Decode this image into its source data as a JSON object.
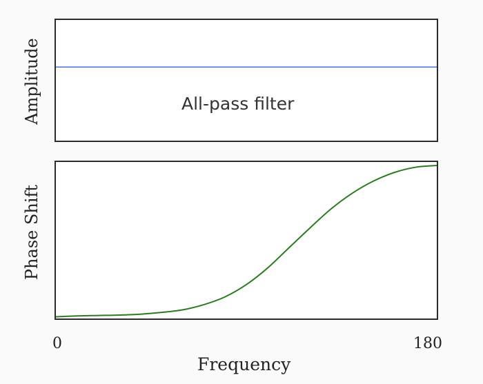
{
  "chart_data": [
    {
      "type": "line",
      "panel": "top",
      "title": "",
      "xlabel": "",
      "ylabel": "Amplitude",
      "annotation": "All-pass filter",
      "xlim": [
        0,
        180
      ],
      "ylim": [
        0,
        1
      ],
      "series": [
        {
          "name": "Amplitude",
          "color": "#4c6fd1",
          "x": [
            0,
            180
          ],
          "y": [
            0.61,
            0.61
          ]
        }
      ]
    },
    {
      "type": "line",
      "panel": "bottom",
      "title": "",
      "xlabel": "Frequency",
      "ylabel": "Phase Shift",
      "xlim": [
        0,
        180
      ],
      "ylim": [
        0,
        180
      ],
      "xticks": [
        "0",
        "180"
      ],
      "series": [
        {
          "name": "Phase Shift",
          "color": "#2a7a1e",
          "x": [
            0,
            10,
            20,
            30,
            40,
            50,
            60,
            70,
            80,
            90,
            100,
            110,
            120,
            130,
            140,
            150,
            160,
            170,
            180
          ],
          "y": [
            2,
            3,
            3.5,
            4,
            5,
            7,
            10,
            16,
            25,
            39,
            58,
            81,
            104,
            126,
            144,
            158,
            168,
            174,
            176
          ]
        }
      ]
    }
  ]
}
